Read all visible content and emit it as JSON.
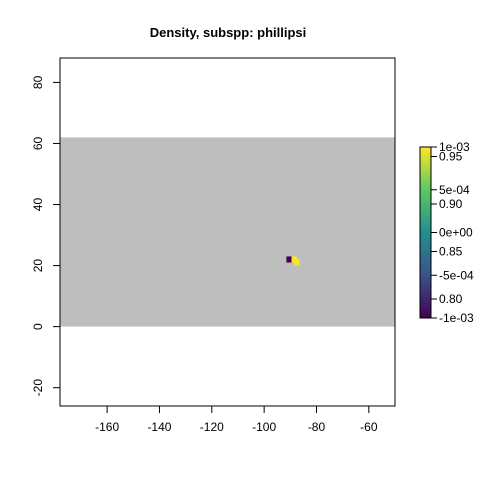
{
  "chart_data": {
    "type": "heatmap",
    "title": "Density, subspp: phillipsi",
    "xlabel": "",
    "ylabel": "",
    "xlim": [
      -178,
      -50
    ],
    "ylim": [
      -26,
      88
    ],
    "x_ticks": [
      -160,
      -140,
      -120,
      -100,
      -80,
      -60
    ],
    "y_ticks": [
      -20,
      0,
      20,
      40,
      60,
      80
    ],
    "background_region": {
      "x": [
        -178,
        -50
      ],
      "y": [
        0,
        62
      ],
      "color": "#bebebe"
    },
    "cells": [
      {
        "x": -90.5,
        "y": 22,
        "value": 0.78,
        "color": "#440154"
      },
      {
        "x": -88.5,
        "y": 22,
        "value": 0.96,
        "color": "#fde725"
      },
      {
        "x": -87.5,
        "y": 21,
        "value": 0.96,
        "color": "#fde725"
      }
    ],
    "cell_size": 2,
    "colorbar": {
      "scale_a": {
        "range": [
          -0.001,
          0.001
        ],
        "ticks": [
          "1e-03",
          "5e-04",
          "0e+00",
          "-5e-04",
          "-1e-03"
        ],
        "tick_values": [
          0.001,
          0.0005,
          0,
          -0.0005,
          -0.001
        ]
      },
      "scale_b": {
        "range": [
          0.78,
          0.96
        ],
        "ticks": [
          "0.95",
          "0.90",
          "0.85",
          "0.80"
        ],
        "tick_values": [
          0.95,
          0.9,
          0.85,
          0.8
        ]
      },
      "colors": [
        "#440154",
        "#3b528b",
        "#21908d",
        "#5dc963",
        "#fde725"
      ]
    }
  }
}
